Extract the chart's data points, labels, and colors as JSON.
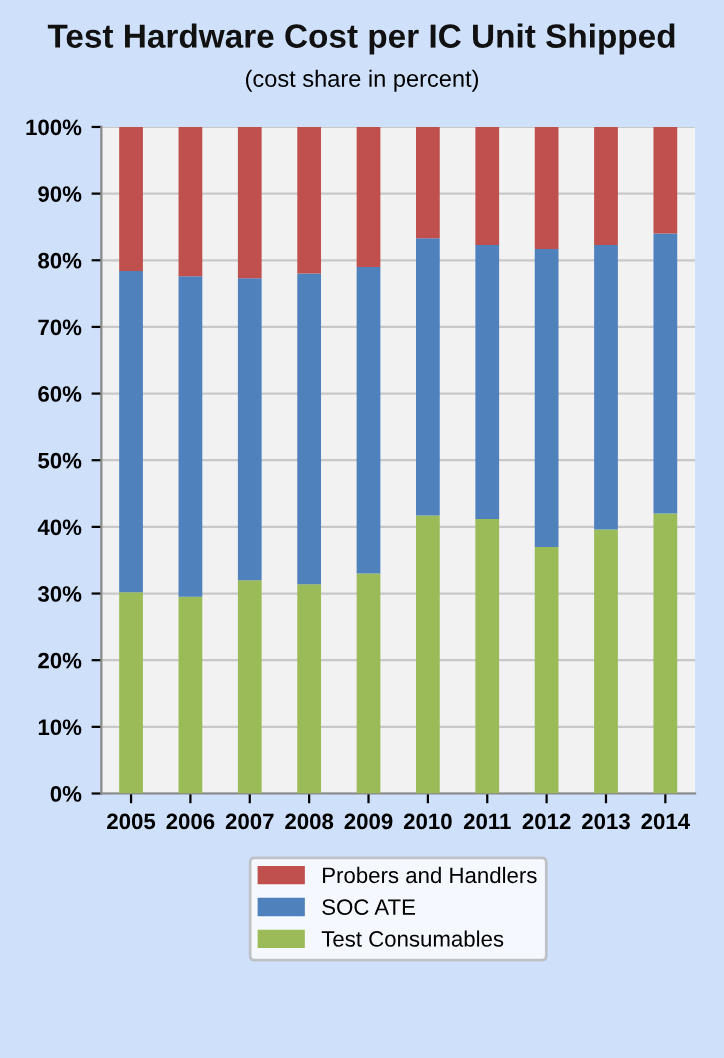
{
  "chart_data": {
    "type": "bar",
    "title": "Test Hardware Cost per IC Unit Shipped",
    "subtitle": "(cost share in percent)",
    "categories": [
      "2005",
      "2006",
      "2007",
      "2008",
      "2009",
      "2010",
      "2011",
      "2012",
      "2013",
      "2014"
    ],
    "stacked": true,
    "series": [
      {
        "name": "Test Consumables",
        "color": "#9bbb59",
        "values": [
          30.2,
          29.5,
          32,
          31.4,
          33,
          41.7,
          41.2,
          37,
          39.6,
          42
        ]
      },
      {
        "name": "SOC ATE",
        "color": "#4f81bd",
        "values": [
          48.2,
          48.1,
          45.3,
          46.6,
          46,
          41.6,
          41.1,
          44.7,
          42.7,
          42
        ]
      },
      {
        "name": "Probers and Handlers",
        "color": "#c0504d",
        "values": [
          21.6,
          22.4,
          22.7,
          22,
          21,
          16.7,
          17.7,
          18.3,
          17.7,
          16
        ]
      }
    ],
    "ylim": [
      0,
      100
    ],
    "yticks": [
      {
        "value": 0,
        "label": "0%"
      },
      {
        "value": 10,
        "label": "10%"
      },
      {
        "value": 20,
        "label": "20%"
      },
      {
        "value": 30,
        "label": "30%"
      },
      {
        "value": 40,
        "label": "40%"
      },
      {
        "value": 50,
        "label": "50%"
      },
      {
        "value": 60,
        "label": "60%"
      },
      {
        "value": 70,
        "label": "70%"
      },
      {
        "value": 80,
        "label": "80%"
      },
      {
        "value": 90,
        "label": "90%"
      },
      {
        "value": 100,
        "label": "100%"
      }
    ],
    "grid": "y",
    "legend": "bottom"
  }
}
